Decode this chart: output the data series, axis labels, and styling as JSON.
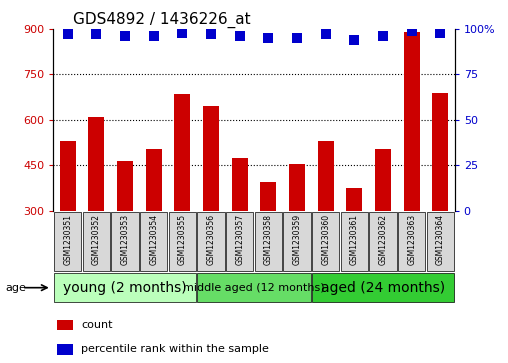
{
  "title": "GDS4892 / 1436226_at",
  "samples": [
    "GSM1230351",
    "GSM1230352",
    "GSM1230353",
    "GSM1230354",
    "GSM1230355",
    "GSM1230356",
    "GSM1230357",
    "GSM1230358",
    "GSM1230359",
    "GSM1230360",
    "GSM1230361",
    "GSM1230362",
    "GSM1230363",
    "GSM1230364"
  ],
  "counts": [
    530,
    610,
    465,
    505,
    685,
    645,
    475,
    395,
    455,
    530,
    375,
    505,
    890,
    690
  ],
  "percentile_ranks": [
    97,
    97,
    96,
    96,
    98,
    97,
    96,
    95,
    95,
    97,
    94,
    96,
    99,
    98
  ],
  "ylim_left": [
    300,
    900
  ],
  "ylim_right": [
    0,
    100
  ],
  "yticks_left": [
    300,
    450,
    600,
    750,
    900
  ],
  "yticks_right": [
    0,
    25,
    50,
    75,
    100
  ],
  "bar_color": "#cc0000",
  "dot_color": "#0000cc",
  "groups": [
    {
      "label": "young (2 months)",
      "start": 0,
      "end": 5,
      "color": "#bbffbb",
      "fontsize": 10
    },
    {
      "label": "middle aged (12 months)",
      "start": 5,
      "end": 9,
      "color": "#66dd66",
      "fontsize": 8
    },
    {
      "label": "aged (24 months)",
      "start": 9,
      "end": 14,
      "color": "#33cc33",
      "fontsize": 10
    }
  ],
  "xlabel_age": "age",
  "legend_count": "count",
  "legend_percentile": "percentile rank within the sample",
  "title_fontsize": 11,
  "tick_fontsize": 8,
  "bar_width": 0.55,
  "dot_size": 45,
  "background_plot": "#ffffff",
  "sample_box_color": "#d8d8d8",
  "grid_yticks": [
    450,
    600,
    750
  ]
}
